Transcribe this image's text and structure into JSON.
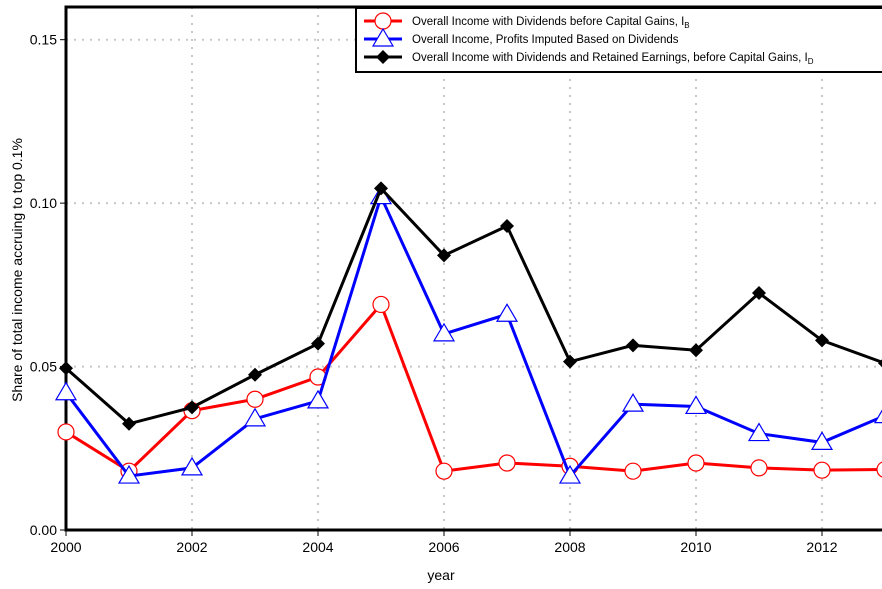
{
  "chart_data": {
    "type": "line",
    "x_label": "year",
    "y_label": "Share of total income accruing to top 0.1%",
    "x": [
      2000,
      2001,
      2002,
      2003,
      2004,
      2005,
      2006,
      2007,
      2008,
      2009,
      2010,
      2011,
      2012,
      2013
    ],
    "series": [
      {
        "name": "Overall Income with Dividends before Capital Gains, I",
        "name_subscript": "B",
        "color": "#ff0000",
        "marker": "circle",
        "values": [
          0.03,
          0.018,
          0.0365,
          0.04,
          0.0468,
          0.069,
          0.018,
          0.0205,
          0.0195,
          0.018,
          0.0205,
          0.019,
          0.0183,
          0.0185
        ]
      },
      {
        "name": "Overall Income, Profits Imputed Based on Dividends",
        "color": "#0000ff",
        "marker": "triangle",
        "values": [
          0.042,
          0.0165,
          0.019,
          0.034,
          0.0395,
          0.102,
          0.06,
          0.066,
          0.0165,
          0.0385,
          0.0378,
          0.0295,
          0.0268,
          0.035
        ]
      },
      {
        "name": "Overall Income with Dividends  and Retained Earnings, before Capital Gains, I",
        "name_subscript": "D",
        "color": "#000000",
        "marker": "diamond",
        "values": [
          0.0495,
          0.0325,
          0.0375,
          0.0475,
          0.057,
          0.1045,
          0.084,
          0.093,
          0.0515,
          0.0565,
          0.055,
          0.0725,
          0.058,
          0.051
        ]
      }
    ],
    "xlim": [
      2000,
      2013
    ],
    "xticks": [
      2000,
      2002,
      2004,
      2006,
      2008,
      2010,
      2012
    ],
    "ylim": [
      0,
      0.16
    ],
    "yticks": [
      {
        "value": 0,
        "label": "0.00"
      },
      {
        "value": 0.05,
        "label": "0.05"
      },
      {
        "value": 0.1,
        "label": "0.10"
      },
      {
        "value": 0.15,
        "label": "0.15"
      }
    ],
    "grid": true,
    "legend": "top-right"
  }
}
